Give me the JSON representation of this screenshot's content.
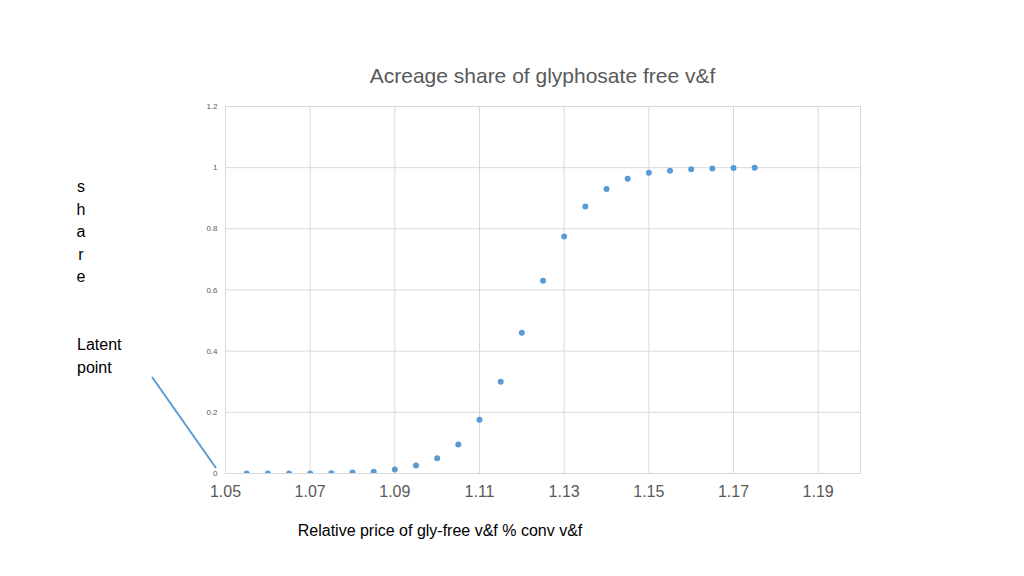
{
  "chart_data": {
    "type": "scatter",
    "title": "Acreage share of glyphosate free v&f",
    "x_label": "Relative price of gly-free v&f % conv v&f",
    "y_label": "share",
    "annotation": "Latent point",
    "x": [
      1.055,
      1.06,
      1.065,
      1.07,
      1.075,
      1.08,
      1.085,
      1.09,
      1.095,
      1.1,
      1.105,
      1.11,
      1.115,
      1.12,
      1.125,
      1.13,
      1.135,
      1.14,
      1.145,
      1.15,
      1.155,
      1.16,
      1.165,
      1.17,
      1.175
    ],
    "values": [
      0,
      0,
      0,
      0,
      0.001,
      0.003,
      0.006,
      0.013,
      0.026,
      0.05,
      0.095,
      0.176,
      0.3,
      0.46,
      0.63,
      0.775,
      0.873,
      0.93,
      0.964,
      0.983,
      0.99,
      0.995,
      0.997,
      0.999,
      1.0
    ],
    "color": "#5b9bd5",
    "marker": "circle",
    "xlim": [
      1.05,
      1.2
    ],
    "xticks": [
      1.05,
      1.07,
      1.09,
      1.11,
      1.13,
      1.15,
      1.17,
      1.19
    ],
    "ylim": [
      0,
      1.2
    ],
    "yticks": [
      0,
      0.2,
      0.4,
      0.6,
      0.8,
      1,
      1.2
    ],
    "grid": true
  }
}
